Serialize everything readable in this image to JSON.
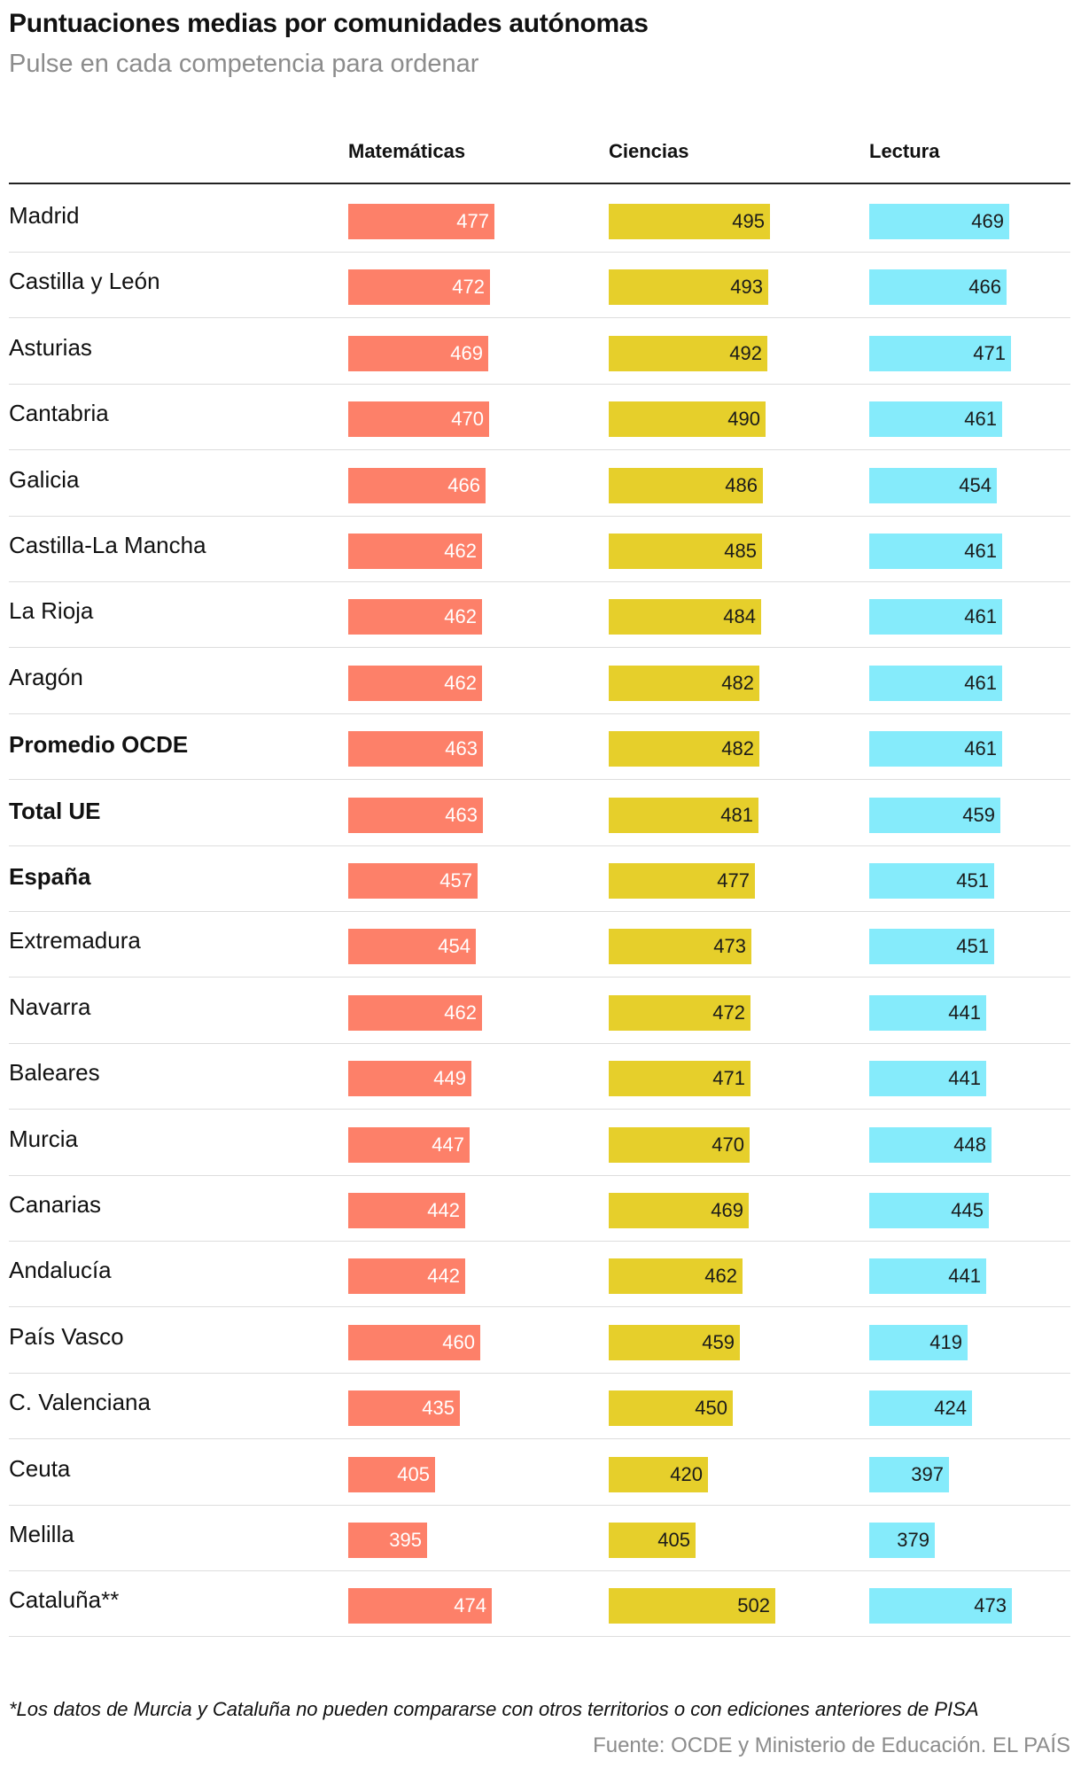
{
  "title": "Puntuaciones medias por comunidades autónomas",
  "subtitle": "Pulse en cada competencia para ordenar",
  "footnote": "*Los datos de Murcia y Cataluña no pueden compararse con otros territorios o con ediciones anteriores de PISA",
  "source": "Fuente: OCDE y Ministerio de Educación. EL PAÍS",
  "colors": {
    "matematicas": "#fd8069",
    "ciencias": "#e6cf2b",
    "lectura": "#85ebfb"
  },
  "chart_data": {
    "type": "bar",
    "title": "Puntuaciones medias por comunidades autónomas",
    "subtitle": "Pulse en cada competencia para ordenar",
    "columns": [
      "Matemáticas",
      "Ciencias",
      "Lectura"
    ],
    "categories": [
      "Madrid",
      "Castilla y León",
      "Asturias",
      "Cantabria",
      "Galicia",
      "Castilla-La Mancha",
      "La Rioja",
      "Aragón",
      "Promedio OCDE",
      "Total UE",
      "España",
      "Extremadura",
      "Navarra",
      "Baleares",
      "Murcia",
      "Canarias",
      "Andalucía",
      "País Vasco",
      "C. Valenciana",
      "Ceuta",
      "Melilla",
      "Cataluña**"
    ],
    "bold_categories": [
      "Promedio OCDE",
      "Total UE",
      "España"
    ],
    "series": [
      {
        "name": "Matemáticas",
        "values": [
          477,
          472,
          469,
          470,
          466,
          462,
          462,
          462,
          463,
          463,
          457,
          454,
          462,
          449,
          447,
          442,
          442,
          460,
          435,
          405,
          395,
          474
        ]
      },
      {
        "name": "Ciencias",
        "values": [
          495,
          493,
          492,
          490,
          486,
          485,
          484,
          482,
          482,
          481,
          477,
          473,
          472,
          471,
          470,
          469,
          462,
          459,
          450,
          420,
          405,
          502
        ]
      },
      {
        "name": "Lectura",
        "values": [
          469,
          466,
          471,
          461,
          454,
          461,
          461,
          461,
          461,
          459,
          451,
          451,
          441,
          441,
          448,
          445,
          441,
          419,
          424,
          397,
          379,
          473
        ]
      }
    ],
    "sort_order": "descending by Ciencias",
    "grid": false
  }
}
